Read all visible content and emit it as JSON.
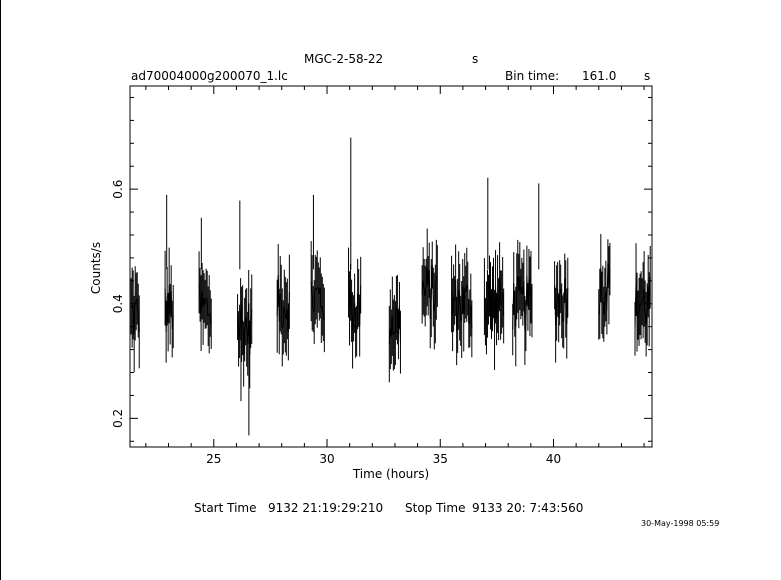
{
  "header": {
    "object_name": "MGC-2-58-22",
    "object_unit": "s",
    "file_name": "ad70004000g200070_1.lc",
    "bin_time_label": "Bin time:",
    "bin_time_value": "161.0",
    "bin_time_unit": "s"
  },
  "footer": {
    "start_label": "Start Time",
    "start_value": "9132 21:19:29:210",
    "stop_label": "Stop Time",
    "stop_value": "9133 20: 7:43:560",
    "print_date": "30-May-1998 05:59"
  },
  "chart_data": {
    "type": "line",
    "style": "segments",
    "xlabel": "Time (hours)",
    "ylabel": "Counts/s",
    "xlim": [
      21.3,
      44.35
    ],
    "ylim": [
      0.15,
      0.78
    ],
    "x_ticks": [
      25,
      30,
      35,
      40
    ],
    "y_ticks": [
      0.2,
      0.4,
      0.6
    ],
    "segments": [
      {
        "start": 21.35,
        "end": 21.75,
        "mean": 0.38
      },
      {
        "start": 22.85,
        "end": 23.25,
        "mean": 0.39
      },
      {
        "start": 24.35,
        "end": 24.9,
        "mean": 0.39
      },
      {
        "start": 26.05,
        "end": 26.7,
        "mean": 0.36
      },
      {
        "start": 27.8,
        "end": 28.35,
        "mean": 0.4
      },
      {
        "start": 29.3,
        "end": 29.9,
        "mean": 0.41
      },
      {
        "start": 30.95,
        "end": 31.5,
        "mean": 0.39
      },
      {
        "start": 32.75,
        "end": 33.25,
        "mean": 0.37
      },
      {
        "start": 34.2,
        "end": 34.9,
        "mean": 0.42
      },
      {
        "start": 35.5,
        "end": 36.4,
        "mean": 0.4
      },
      {
        "start": 36.95,
        "end": 37.8,
        "mean": 0.4
      },
      {
        "start": 38.2,
        "end": 39.05,
        "mean": 0.4
      },
      {
        "start": 40.05,
        "end": 40.65,
        "mean": 0.41
      },
      {
        "start": 42.0,
        "end": 42.5,
        "mean": 0.43
      },
      {
        "start": 43.6,
        "end": 44.3,
        "mean": 0.4
      }
    ],
    "notable_points": [
      {
        "x": 22.92,
        "y": 0.59
      },
      {
        "x": 24.45,
        "y": 0.55
      },
      {
        "x": 26.15,
        "y": 0.58
      },
      {
        "x": 26.2,
        "y": 0.23
      },
      {
        "x": 26.55,
        "y": 0.17
      },
      {
        "x": 29.4,
        "y": 0.59
      },
      {
        "x": 31.05,
        "y": 0.69
      },
      {
        "x": 37.1,
        "y": 0.62
      },
      {
        "x": 39.35,
        "y": 0.61
      }
    ]
  }
}
